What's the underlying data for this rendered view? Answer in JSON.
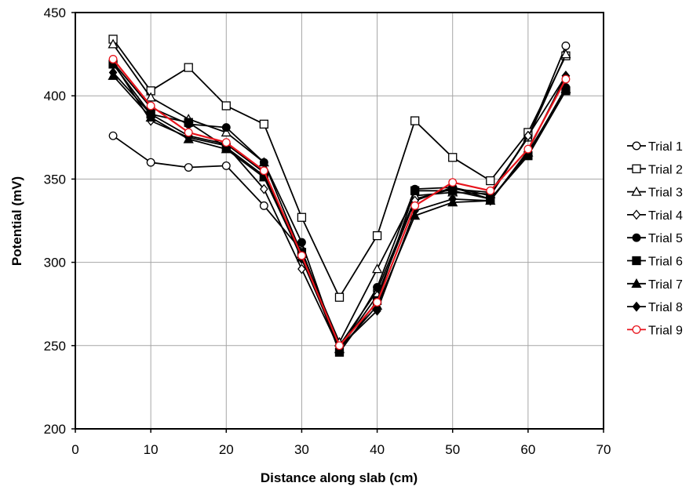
{
  "chart_data": {
    "type": "line",
    "title": "",
    "xlabel": "Distance along slab (cm)",
    "ylabel": "Potential (mV)",
    "xlim": [
      0,
      70
    ],
    "ylim": [
      200,
      450
    ],
    "x_ticks": [
      0,
      10,
      20,
      30,
      40,
      50,
      60,
      70
    ],
    "y_ticks": [
      200,
      250,
      300,
      350,
      400,
      450
    ],
    "grid": true,
    "legend_position": "right",
    "x": [
      5,
      10,
      15,
      20,
      25,
      30,
      35,
      40,
      45,
      50,
      55,
      60,
      65
    ],
    "series": [
      {
        "name": "Trial 1",
        "marker": "circle-open",
        "color": "#000000",
        "values": [
          376,
          360,
          357,
          358,
          334,
          307,
          250,
          283,
          338,
          344,
          342,
          375,
          430
        ]
      },
      {
        "name": "Trial 2",
        "marker": "square-open",
        "color": "#000000",
        "values": [
          434,
          403,
          417,
          394,
          383,
          327,
          279,
          316,
          385,
          363,
          349,
          378,
          424
        ]
      },
      {
        "name": "Trial 3",
        "marker": "triangle-open",
        "color": "#000000",
        "values": [
          431,
          399,
          386,
          378,
          360,
          305,
          252,
          296,
          340,
          342,
          341,
          375,
          425
        ]
      },
      {
        "name": "Trial 4",
        "marker": "diamond-open",
        "color": "#000000",
        "values": [
          420,
          385,
          375,
          370,
          344,
          296,
          248,
          280,
          337,
          345,
          340,
          376,
          412
        ]
      },
      {
        "name": "Trial 5",
        "marker": "circle-filled",
        "color": "#000000",
        "values": [
          420,
          393,
          383,
          381,
          360,
          312,
          247,
          285,
          344,
          345,
          338,
          365,
          405
        ]
      },
      {
        "name": "Trial 6",
        "marker": "square-filled",
        "color": "#000000",
        "values": [
          419,
          389,
          384,
          369,
          352,
          306,
          246,
          277,
          343,
          343,
          338,
          364,
          403
        ]
      },
      {
        "name": "Trial 7",
        "marker": "triangle-filled",
        "color": "#000000",
        "values": [
          412,
          387,
          374,
          368,
          351,
          303,
          248,
          274,
          328,
          336,
          337,
          366,
          404
        ]
      },
      {
        "name": "Trial 8",
        "marker": "diamond-filled",
        "color": "#000000",
        "values": [
          414,
          389,
          376,
          371,
          354,
          302,
          249,
          271,
          331,
          338,
          337,
          367,
          412
        ]
      },
      {
        "name": "Trial 9",
        "marker": "circle-open",
        "color": "#e8141c",
        "values": [
          422,
          394,
          378,
          372,
          355,
          304,
          250,
          276,
          334,
          348,
          343,
          368,
          410
        ]
      }
    ]
  }
}
